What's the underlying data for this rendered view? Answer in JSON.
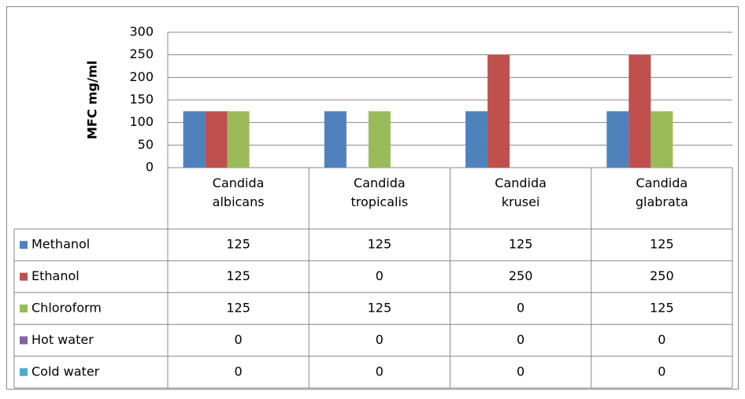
{
  "chart_data": {
    "type": "bar",
    "y_label": "MFC mg/ml",
    "categories": [
      "Candida albicans",
      "Candida tropicalis",
      "Candida krusei",
      "Candida glabrata"
    ],
    "series": [
      {
        "name": "Methanol",
        "color": "#4f81bd",
        "values": [
          125,
          125,
          125,
          125
        ]
      },
      {
        "name": "Ethanol",
        "color": "#c0504d",
        "values": [
          125,
          0,
          250,
          250
        ]
      },
      {
        "name": "Chloroform",
        "color": "#9bbb59",
        "values": [
          125,
          125,
          0,
          125
        ]
      },
      {
        "name": "Hot water",
        "color": "#8064a2",
        "values": [
          0,
          0,
          0,
          0
        ]
      },
      {
        "name": "Cold water",
        "color": "#4bacc6",
        "values": [
          0,
          0,
          0,
          0
        ]
      }
    ],
    "ylim": [
      0,
      300
    ],
    "yticks": [
      0,
      50,
      100,
      150,
      200,
      250,
      300
    ],
    "grid": true
  }
}
